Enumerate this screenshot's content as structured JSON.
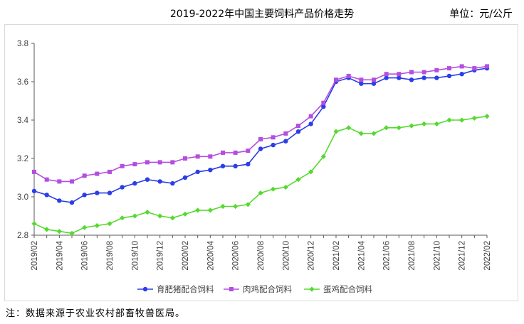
{
  "header": {
    "title": "2019-2022年中国主要饲料产品价格走势",
    "unit": "单位：元/公斤"
  },
  "footer": {
    "note": "注：数据来源于农业农村部畜牧兽医局。"
  },
  "chart_data": {
    "type": "line",
    "title": "2019-2022年中国主要饲料产品价格走势",
    "xlabel": "",
    "ylabel": "",
    "ylim": [
      2.8,
      3.8
    ],
    "yticks": [
      "2.8",
      "3.0",
      "3.2",
      "3.4",
      "3.6",
      "3.8"
    ],
    "grid": false,
    "legend": "bottom",
    "x": [
      "2019/02",
      "2019/03",
      "2019/04",
      "2019/05",
      "2019/06",
      "2019/07",
      "2019/08",
      "2019/09",
      "2019/10",
      "2019/11",
      "2019/12",
      "2020/01",
      "2020/02",
      "2020/03",
      "2020/04",
      "2020/05",
      "2020/06",
      "2020/07",
      "2020/08",
      "2020/09",
      "2020/10",
      "2020/11",
      "2020/12",
      "2021/01",
      "2021/02",
      "2021/03",
      "2021/04",
      "2021/05",
      "2021/06",
      "2021/07",
      "2021/08",
      "2021/09",
      "2021/10",
      "2021/11",
      "2021/12",
      "2022/01",
      "2022/02"
    ],
    "xticks": [
      "2019/02",
      "2019/04",
      "2019/06",
      "2019/08",
      "2019/10",
      "2019/12",
      "2020/02",
      "2020/04",
      "2020/06",
      "2020/08",
      "2020/10",
      "2020/12",
      "2021/02",
      "2021/04",
      "2021/06",
      "2021/08",
      "2021/10",
      "2021/12",
      "2022/02"
    ],
    "series": [
      {
        "name": "育肥猪配合饲料",
        "color": "#2b3ee6",
        "marker": "circle",
        "values": [
          3.03,
          3.01,
          2.98,
          2.97,
          3.01,
          3.02,
          3.02,
          3.05,
          3.07,
          3.09,
          3.08,
          3.07,
          3.1,
          3.13,
          3.14,
          3.16,
          3.16,
          3.17,
          3.25,
          3.27,
          3.29,
          3.34,
          3.38,
          3.47,
          3.6,
          3.62,
          3.59,
          3.59,
          3.62,
          3.62,
          3.61,
          3.62,
          3.62,
          3.63,
          3.64,
          3.66,
          3.67
        ]
      },
      {
        "name": "肉鸡配合饲料",
        "color": "#b44ee0",
        "marker": "square",
        "values": [
          3.13,
          3.09,
          3.08,
          3.08,
          3.11,
          3.12,
          3.13,
          3.16,
          3.17,
          3.18,
          3.18,
          3.18,
          3.2,
          3.21,
          3.21,
          3.23,
          3.23,
          3.24,
          3.3,
          3.31,
          3.33,
          3.37,
          3.42,
          3.49,
          3.61,
          3.63,
          3.61,
          3.61,
          3.64,
          3.64,
          3.65,
          3.65,
          3.66,
          3.67,
          3.68,
          3.67,
          3.68
        ]
      },
      {
        "name": "蛋鸡配合饲料",
        "color": "#55d92e",
        "marker": "diamond",
        "values": [
          2.86,
          2.83,
          2.82,
          2.81,
          2.84,
          2.85,
          2.86,
          2.89,
          2.9,
          2.92,
          2.9,
          2.89,
          2.91,
          2.93,
          2.93,
          2.95,
          2.95,
          2.96,
          3.02,
          3.04,
          3.05,
          3.09,
          3.13,
          3.21,
          3.34,
          3.36,
          3.33,
          3.33,
          3.36,
          3.36,
          3.37,
          3.38,
          3.38,
          3.4,
          3.4,
          3.41,
          3.42
        ]
      }
    ]
  }
}
